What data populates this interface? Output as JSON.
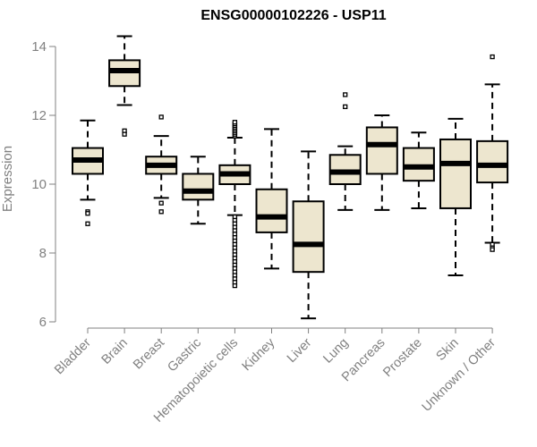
{
  "chart_data": {
    "type": "boxplot",
    "title": "ENSG00000102226 - USP11",
    "xlabel": "",
    "ylabel": "Expression",
    "ylim": [
      6,
      14
    ],
    "yticks": [
      6,
      8,
      10,
      12,
      14
    ],
    "colors": {
      "box_fill": "#ede6cf",
      "stroke": "#000000",
      "axis": "#808080"
    },
    "categories": [
      "Bladder",
      "Brain",
      "Breast",
      "Gastric",
      "Hematopoietic cells",
      "Kidney",
      "Liver",
      "Lung",
      "Pancreas",
      "Prostate",
      "Skin",
      "Unknown / Other"
    ],
    "boxes": [
      {
        "name": "Bladder",
        "whisker_low": 9.55,
        "q1": 10.3,
        "median": 10.7,
        "q3": 11.05,
        "whisker_high": 11.85,
        "outliers": [
          9.2,
          9.15,
          8.85
        ]
      },
      {
        "name": "Brain",
        "whisker_low": 12.3,
        "q1": 12.85,
        "median": 13.3,
        "q3": 13.6,
        "whisker_high": 14.3,
        "outliers": [
          11.55,
          11.45
        ]
      },
      {
        "name": "Breast",
        "whisker_low": 9.6,
        "q1": 10.3,
        "median": 10.55,
        "q3": 10.8,
        "whisker_high": 11.4,
        "outliers": [
          11.95,
          9.45,
          9.2
        ]
      },
      {
        "name": "Gastric",
        "whisker_low": 8.85,
        "q1": 9.55,
        "median": 9.8,
        "q3": 10.3,
        "whisker_high": 10.8,
        "outliers": []
      },
      {
        "name": "Hematopoietic cells",
        "whisker_low": 9.1,
        "q1": 10.0,
        "median": 10.3,
        "q3": 10.55,
        "whisker_high": 11.35,
        "outliers": [
          11.4,
          11.45,
          11.5,
          11.55,
          11.6,
          11.65,
          11.7,
          11.75,
          11.8,
          9.05,
          8.95,
          8.85,
          8.75,
          8.65,
          8.55,
          8.45,
          8.35,
          8.25,
          8.15,
          8.05,
          7.95,
          7.85,
          7.75,
          7.65,
          7.55,
          7.45,
          7.35,
          7.25,
          7.15,
          7.05
        ]
      },
      {
        "name": "Kidney",
        "whisker_low": 7.55,
        "q1": 8.6,
        "median": 9.05,
        "q3": 9.85,
        "whisker_high": 11.6,
        "outliers": []
      },
      {
        "name": "Liver",
        "whisker_low": 6.1,
        "q1": 7.45,
        "median": 8.25,
        "q3": 9.5,
        "whisker_high": 10.95,
        "outliers": []
      },
      {
        "name": "Lung",
        "whisker_low": 9.25,
        "q1": 10.0,
        "median": 10.35,
        "q3": 10.85,
        "whisker_high": 11.1,
        "outliers": [
          12.6,
          12.25
        ]
      },
      {
        "name": "Pancreas",
        "whisker_low": 9.25,
        "q1": 10.3,
        "median": 11.15,
        "q3": 11.65,
        "whisker_high": 12.0,
        "outliers": []
      },
      {
        "name": "Prostate",
        "whisker_low": 9.3,
        "q1": 10.1,
        "median": 10.5,
        "q3": 11.05,
        "whisker_high": 11.5,
        "outliers": []
      },
      {
        "name": "Skin",
        "whisker_low": 7.35,
        "q1": 9.3,
        "median": 10.6,
        "q3": 11.3,
        "whisker_high": 11.9,
        "outliers": []
      },
      {
        "name": "Unknown / Other",
        "whisker_low": 8.3,
        "q1": 10.05,
        "median": 10.55,
        "q3": 11.25,
        "whisker_high": 12.9,
        "outliers": [
          13.7,
          8.25,
          8.15,
          8.1
        ]
      }
    ]
  }
}
